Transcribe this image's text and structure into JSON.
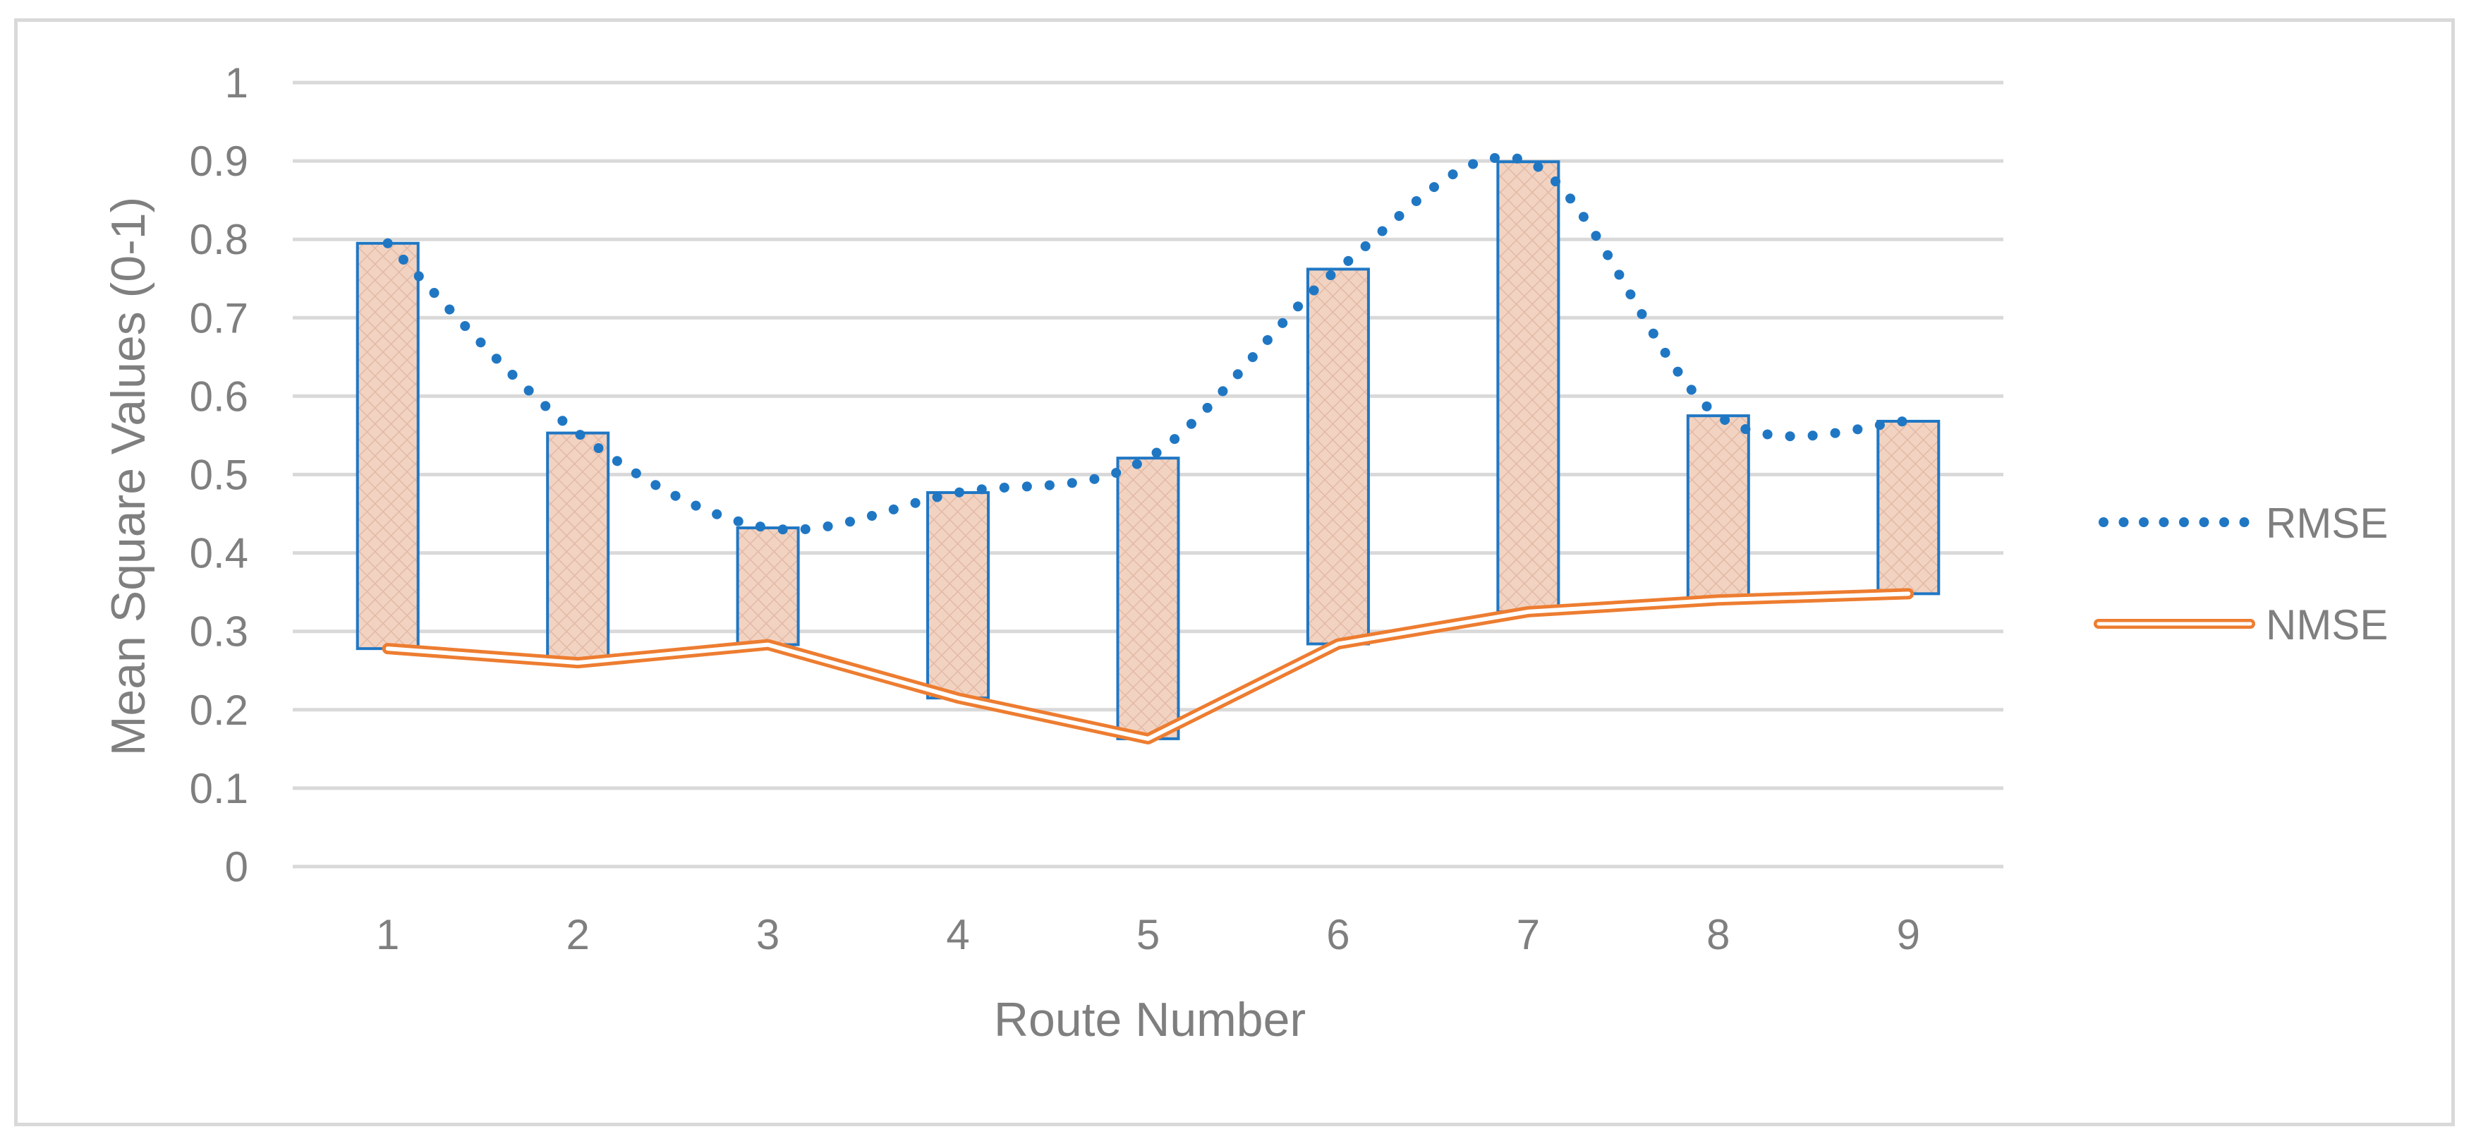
{
  "chart_data": {
    "type": "line",
    "xlabel": "Route Number",
    "ylabel": "Mean Square Values (0-1)",
    "categories": [
      "1",
      "2",
      "3",
      "4",
      "5",
      "6",
      "7",
      "8",
      "9"
    ],
    "ylim": [
      0,
      1
    ],
    "yticks": [
      "0",
      "0.1",
      "0.2",
      "0.3",
      "0.4",
      "0.5",
      "0.6",
      "0.7",
      "0.8",
      "0.9",
      "1"
    ],
    "grid": true,
    "legend_position": "right",
    "series": [
      {
        "name": "RMSE",
        "style": "dotted",
        "color": "#1f77c4",
        "values": [
          0.795,
          0.553,
          0.432,
          0.477,
          0.521,
          0.762,
          0.899,
          0.575,
          0.568
        ]
      },
      {
        "name": "NMSE",
        "style": "double-line",
        "color": "#ed7d31",
        "values": [
          0.278,
          0.26,
          0.283,
          0.215,
          0.163,
          0.284,
          0.325,
          0.34,
          0.348
        ]
      }
    ],
    "range_bars": {
      "from_series": "NMSE",
      "to_series": "RMSE",
      "fill": "#f2d3c2",
      "stroke": "#1f77c4"
    }
  }
}
